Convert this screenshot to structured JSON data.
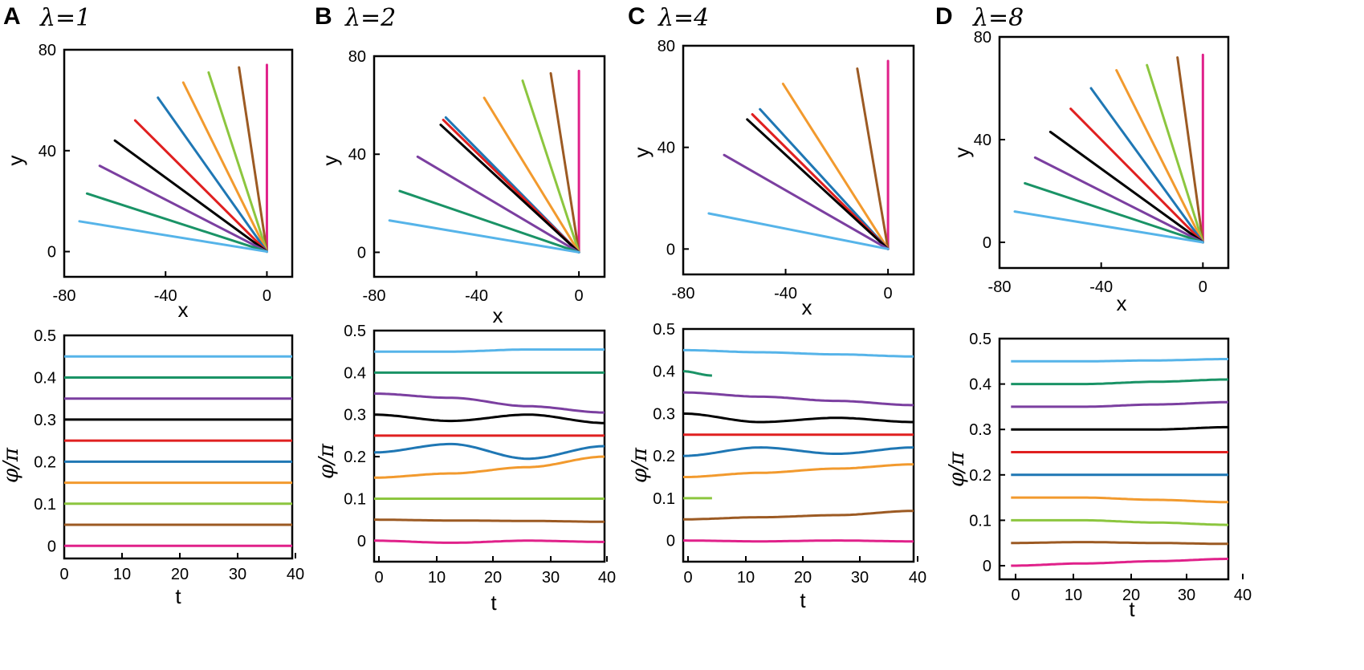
{
  "colors": [
    "#e0218a",
    "#9c5a23",
    "#8cc63f",
    "#f29a2e",
    "#1f77b4",
    "#e02020",
    "#000000",
    "#7b3fa0",
    "#1a9366",
    "#56b4e9"
  ],
  "chart_data": [
    {
      "panel": "A",
      "title": "λ=1",
      "trajectories": {
        "type": "line",
        "xlabel": "x",
        "ylabel": "y",
        "xlim": [
          -80,
          10
        ],
        "ylim": [
          -10,
          80
        ],
        "xticks": [
          "-80",
          "-40",
          "0"
        ],
        "yticks": [
          "80",
          "40",
          "0"
        ],
        "end_points": [
          [
            0,
            74
          ],
          [
            -11,
            73
          ],
          [
            -23,
            71
          ],
          [
            -33,
            67
          ],
          [
            -43,
            61
          ],
          [
            -52,
            52
          ],
          [
            -60,
            44
          ],
          [
            -66,
            34
          ],
          [
            -71,
            23
          ],
          [
            -74,
            12
          ]
        ]
      },
      "phases": {
        "type": "line",
        "xlabel": "t",
        "ylabel": "φ/π",
        "xlim": [
          0,
          40
        ],
        "ylim": [
          -0.03,
          0.5
        ],
        "xticks": [
          "0",
          "10",
          "20",
          "30",
          "40"
        ],
        "yticks": [
          "0.5",
          "0.4",
          "0.3",
          "0.2",
          "0.1",
          "0"
        ],
        "series": [
          {
            "values": [
              0.0,
              0.0
            ]
          },
          {
            "values": [
              0.05,
              0.05
            ]
          },
          {
            "values": [
              0.1,
              0.1
            ]
          },
          {
            "values": [
              0.15,
              0.15
            ]
          },
          {
            "values": [
              0.2,
              0.2
            ]
          },
          {
            "values": [
              0.25,
              0.25
            ]
          },
          {
            "values": [
              0.3,
              0.3
            ]
          },
          {
            "values": [
              0.35,
              0.35
            ]
          },
          {
            "values": [
              0.4,
              0.4
            ]
          },
          {
            "values": [
              0.45,
              0.45
            ]
          }
        ]
      }
    },
    {
      "panel": "B",
      "title": "λ=2",
      "trajectories": {
        "type": "line",
        "xlabel": "x",
        "ylabel": "y",
        "xlim": [
          -80,
          10
        ],
        "ylim": [
          -10,
          80
        ],
        "xticks": [
          "-80",
          "-40",
          "0"
        ],
        "yticks": [
          "80",
          "40",
          "0"
        ],
        "end_points": [
          [
            0,
            74
          ],
          [
            -11,
            73
          ],
          [
            -22,
            70
          ],
          [
            -37,
            63
          ],
          [
            -52,
            55
          ],
          [
            -53,
            54
          ],
          [
            -54,
            52
          ],
          [
            -63,
            39
          ],
          [
            -70,
            25
          ],
          [
            -74,
            13
          ]
        ]
      },
      "phases": {
        "type": "line",
        "xlabel": "t",
        "ylabel": "φ/π",
        "xlim": [
          0,
          40
        ],
        "ylim": [
          -0.05,
          0.5
        ],
        "xticks": [
          "0",
          "10",
          "20",
          "30",
          "40"
        ],
        "yticks": [
          "0.5",
          "0.4",
          "0.3",
          "0.2",
          "0.1",
          "0"
        ],
        "series": [
          {
            "values": [
              0.0,
              -0.005,
              0.0,
              -0.003
            ]
          },
          {
            "values": [
              0.05,
              0.048,
              0.047,
              0.045
            ]
          },
          {
            "values": [
              0.1,
              0.1,
              0.1,
              0.1
            ]
          },
          {
            "values": [
              0.15,
              0.16,
              0.175,
              0.2
            ]
          },
          {
            "values": [
              0.21,
              0.23,
              0.195,
              0.225
            ]
          },
          {
            "values": [
              0.25,
              0.25,
              0.25,
              0.25
            ]
          },
          {
            "values": [
              0.3,
              0.285,
              0.3,
              0.28
            ]
          },
          {
            "values": [
              0.35,
              0.34,
              0.32,
              0.305
            ]
          },
          {
            "values": [
              0.4,
              0.4,
              0.4,
              0.4
            ]
          },
          {
            "values": [
              0.45,
              0.45,
              0.455,
              0.455
            ]
          }
        ]
      }
    },
    {
      "panel": "C",
      "title": "λ=4",
      "trajectories": {
        "type": "line",
        "xlabel": "x",
        "ylabel": "y",
        "xlim": [
          -80,
          10
        ],
        "ylim": [
          -10,
          80
        ],
        "xticks": [
          "-80",
          "-40",
          "0"
        ],
        "yticks": [
          "80",
          "40",
          "0"
        ],
        "end_points": [
          [
            0,
            74
          ],
          [
            -12,
            71
          ],
          [
            -41,
            65
          ],
          [
            -50,
            55
          ],
          [
            -53,
            53
          ],
          [
            -55,
            51
          ],
          [
            -64,
            37
          ],
          [
            -70,
            14
          ]
        ]
      },
      "phases": {
        "type": "line",
        "xlabel": "t",
        "ylabel": "φ/π",
        "xlim": [
          0,
          40
        ],
        "ylim": [
          -0.05,
          0.5
        ],
        "xticks": [
          "0",
          "10",
          "20",
          "30",
          "40"
        ],
        "yticks": [
          "0.5",
          "0.4",
          "0.3",
          "0.2",
          "0.1",
          "0"
        ],
        "series": [
          {
            "values": [
              0.0,
              -0.002,
              0.0,
              -0.002
            ]
          },
          {
            "values": [
              0.05,
              0.055,
              0.06,
              0.07
            ]
          },
          {
            "values": [
              0.1,
              0.1
            ]
          },
          {
            "values": [
              0.15,
              0.16,
              0.17,
              0.18
            ]
          },
          {
            "values": [
              0.2,
              0.22,
              0.205,
              0.22
            ]
          },
          {
            "values": [
              0.25,
              0.25,
              0.25,
              0.25
            ]
          },
          {
            "values": [
              0.3,
              0.28,
              0.29,
              0.28
            ]
          },
          {
            "values": [
              0.35,
              0.34,
              0.33,
              0.32
            ]
          },
          {
            "values": [
              0.4,
              0.39
            ]
          },
          {
            "values": [
              0.45,
              0.445,
              0.44,
              0.435
            ]
          }
        ]
      }
    },
    {
      "panel": "D",
      "title": "λ=8",
      "trajectories": {
        "type": "line",
        "xlabel": "x",
        "ylabel": "y",
        "xlim": [
          -80,
          10
        ],
        "ylim": [
          -10,
          80
        ],
        "xticks": [
          "-80",
          "-40",
          "0"
        ],
        "yticks": [
          "80",
          "40",
          "0"
        ],
        "end_points": [
          [
            0,
            73
          ],
          [
            -10,
            72
          ],
          [
            -22,
            69
          ],
          [
            -34,
            67
          ],
          [
            -44,
            60
          ],
          [
            -52,
            52
          ],
          [
            -60,
            43
          ],
          [
            -66,
            33
          ],
          [
            -70,
            23
          ],
          [
            -74,
            12
          ]
        ]
      },
      "phases": {
        "type": "line",
        "xlabel": "t",
        "ylabel": "φ/π",
        "xlim": [
          -2,
          38
        ],
        "ylim": [
          -0.03,
          0.5
        ],
        "xticks": [
          "0",
          "10",
          "20",
          "30",
          "40"
        ],
        "yticks": [
          "0.5",
          "0.4",
          "0.3",
          "0.2",
          "0.1",
          "0"
        ],
        "series": [
          {
            "values": [
              0.0,
              0.005,
              0.01,
              0.015
            ]
          },
          {
            "values": [
              0.05,
              0.052,
              0.05,
              0.048
            ]
          },
          {
            "values": [
              0.1,
              0.1,
              0.095,
              0.09
            ]
          },
          {
            "values": [
              0.15,
              0.15,
              0.145,
              0.14
            ]
          },
          {
            "values": [
              0.2,
              0.2,
              0.2,
              0.2
            ]
          },
          {
            "values": [
              0.25,
              0.25,
              0.25,
              0.25
            ]
          },
          {
            "values": [
              0.3,
              0.3,
              0.3,
              0.305
            ]
          },
          {
            "values": [
              0.35,
              0.35,
              0.355,
              0.36
            ]
          },
          {
            "values": [
              0.4,
              0.4,
              0.405,
              0.41
            ]
          },
          {
            "values": [
              0.45,
              0.45,
              0.452,
              0.455
            ]
          }
        ]
      }
    }
  ]
}
